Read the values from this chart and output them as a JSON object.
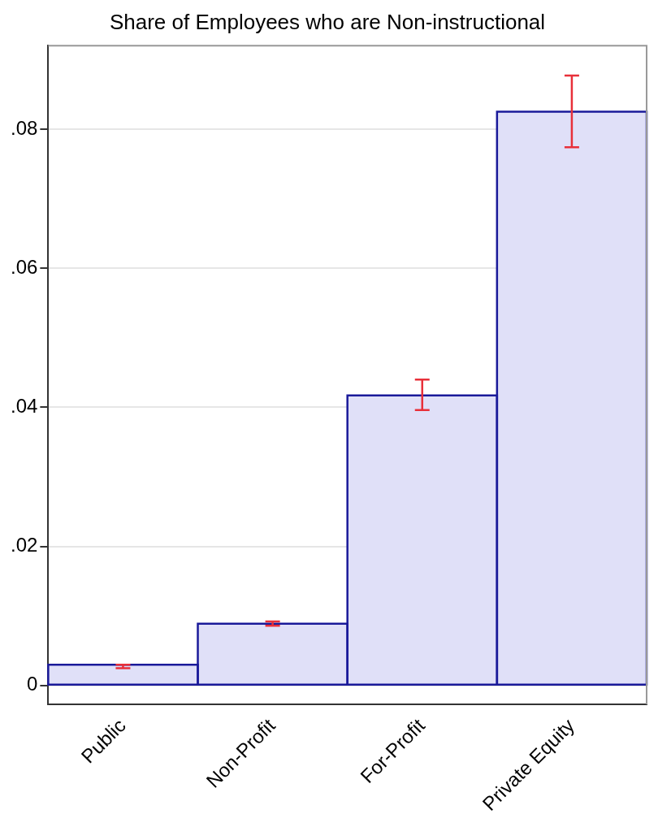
{
  "chart_data": {
    "type": "bar",
    "title": "Share of Employees who are Non-instructional",
    "categories": [
      "Public",
      "Non-Profit",
      "For-Profit",
      "Private Equity"
    ],
    "values": [
      0.003,
      0.0089,
      0.0417,
      0.0825
    ],
    "errors": [
      [
        0.0025,
        0.003
      ],
      [
        0.0086,
        0.0092
      ],
      [
        0.0396,
        0.044
      ],
      [
        0.0774,
        0.0877
      ]
    ],
    "color": "#e0e0f8",
    "ylim": [
      -0.0027,
      0.092
    ],
    "yticks": [
      {
        "value": 0,
        "label": "0"
      },
      {
        "value": 0.02,
        "label": ".02"
      },
      {
        "value": 0.04,
        "label": ".04"
      },
      {
        "value": 0.06,
        "label": ".06"
      },
      {
        "value": 0.08,
        "label": ".08"
      }
    ],
    "grid": "y",
    "legend": false
  }
}
